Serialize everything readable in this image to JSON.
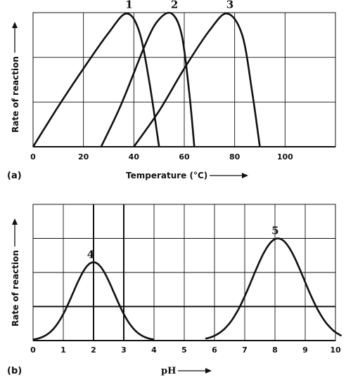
{
  "chart_data": [
    {
      "type": "line",
      "panel_label": "(a)",
      "xlabel": "Temperature (°C)",
      "ylabel": "Rate of reaction",
      "xlim": [
        0,
        120
      ],
      "ylim": [
        0,
        3
      ],
      "x_ticks": [
        "0",
        "20",
        "40",
        "60",
        "80",
        "100"
      ],
      "grid": true,
      "series": [
        {
          "name": "1",
          "x": [
            0,
            10,
            20,
            30,
            37,
            42,
            46,
            50
          ],
          "y": [
            0,
            0.9,
            1.75,
            2.55,
            2.98,
            2.6,
            1.5,
            0
          ]
        },
        {
          "name": "2",
          "x": [
            27,
            35,
            45,
            50,
            55,
            59,
            62,
            64
          ],
          "y": [
            0,
            0.95,
            2.35,
            2.85,
            2.98,
            2.5,
            1.2,
            0
          ]
        },
        {
          "name": "3",
          "x": [
            40,
            50,
            60,
            70,
            77,
            83,
            87,
            90
          ],
          "y": [
            0,
            0.8,
            1.75,
            2.6,
            2.98,
            2.5,
            1.2,
            0
          ]
        }
      ]
    },
    {
      "type": "line",
      "panel_label": "(b)",
      "xlabel": "pH",
      "ylabel": "Rate of reaction",
      "xlim": [
        0,
        10
      ],
      "ylim": [
        0,
        4
      ],
      "x_ticks": [
        "0",
        "1",
        "2",
        "3",
        "4",
        "5",
        "6",
        "7",
        "8",
        "9",
        "10"
      ],
      "grid": true,
      "series": [
        {
          "name": "4",
          "peak_x": 2,
          "peak_y": 2.3,
          "sigma": 0.68,
          "range": [
            0,
            4
          ]
        },
        {
          "name": "5",
          "peak_x": 8.1,
          "peak_y": 3.0,
          "sigma": 0.85,
          "range": [
            5.7,
            10.2
          ]
        }
      ]
    }
  ]
}
